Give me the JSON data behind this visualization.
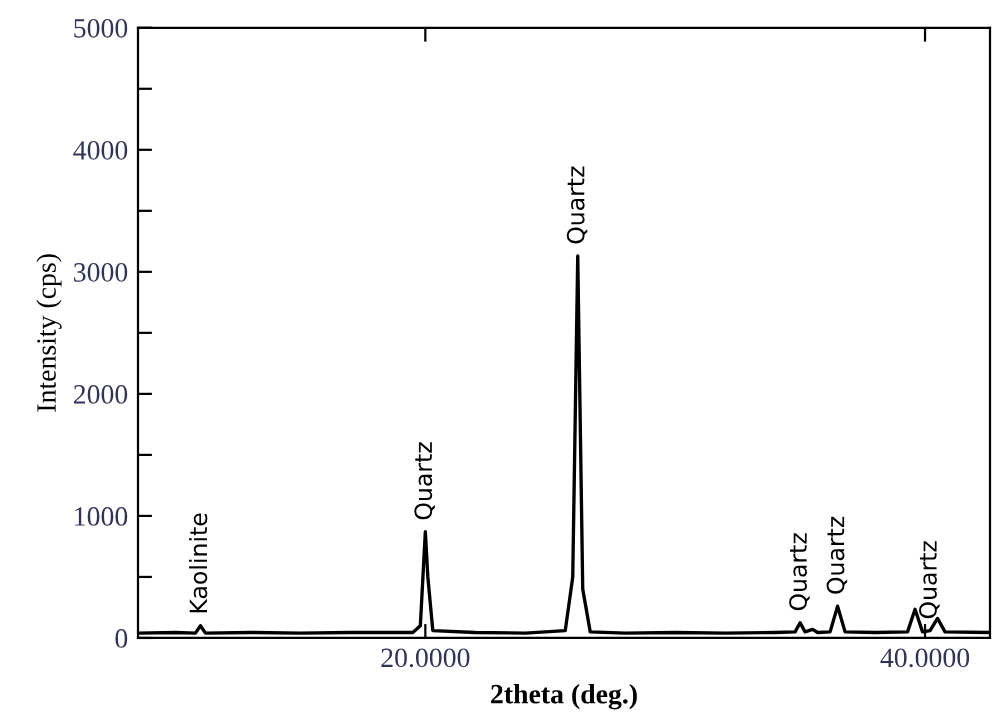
{
  "chart_data": {
    "type": "line",
    "xlabel": "2theta (deg.)",
    "ylabel": "Intensity (cps)",
    "x": [
      8.5,
      10,
      10.8,
      11.0,
      11.2,
      13,
      15,
      17,
      19.5,
      19.8,
      20.0,
      20.1,
      20.3,
      22,
      24,
      25.6,
      25.9,
      26.1,
      26.3,
      26.6,
      28,
      30,
      32,
      34,
      34.8,
      35.0,
      35.2,
      35.5,
      35.7,
      36.2,
      36.5,
      36.8,
      38,
      39.3,
      39.6,
      39.9,
      40.2,
      40.5,
      40.8,
      42.5
    ],
    "series": [
      {
        "color": "#000000",
        "values": [
          40,
          45,
          40,
          100,
          40,
          45,
          40,
          45,
          45,
          100,
          870,
          500,
          60,
          45,
          40,
          60,
          500,
          3130,
          400,
          50,
          40,
          45,
          40,
          45,
          50,
          125,
          50,
          70,
          45,
          50,
          260,
          50,
          45,
          50,
          235,
          50,
          60,
          160,
          50,
          45
        ]
      }
    ],
    "annotations": [
      {
        "text": "Kaolinite",
        "x": 11.0,
        "y": 100
      },
      {
        "text": "Quartz",
        "x": 20.0,
        "y": 870
      },
      {
        "text": "Quartz",
        "x": 26.1,
        "y": 3130
      },
      {
        "text": "Quartz",
        "x": 35.0,
        "y": 125
      },
      {
        "text": "Quartz",
        "x": 36.5,
        "y": 260
      },
      {
        "text": "Quartz",
        "x": 40.2,
        "y": 60
      }
    ],
    "xlim": [
      8.5,
      42.6
    ],
    "ylim": [
      0,
      5000
    ],
    "xticks": [
      {
        "value": 20,
        "label": "20.0000"
      },
      {
        "value": 40,
        "label": "40.0000"
      }
    ],
    "yticks": [
      0,
      {
        "value": 500,
        "label": null
      },
      1000,
      {
        "value": 1500,
        "label": null
      },
      2000,
      {
        "value": 2500,
        "label": null
      },
      3000,
      {
        "value": 3500,
        "label": null
      },
      4000,
      {
        "value": 4500,
        "label": null
      },
      5000
    ],
    "grid": false,
    "legend": false,
    "marker": "none",
    "line_style": "solid"
  }
}
